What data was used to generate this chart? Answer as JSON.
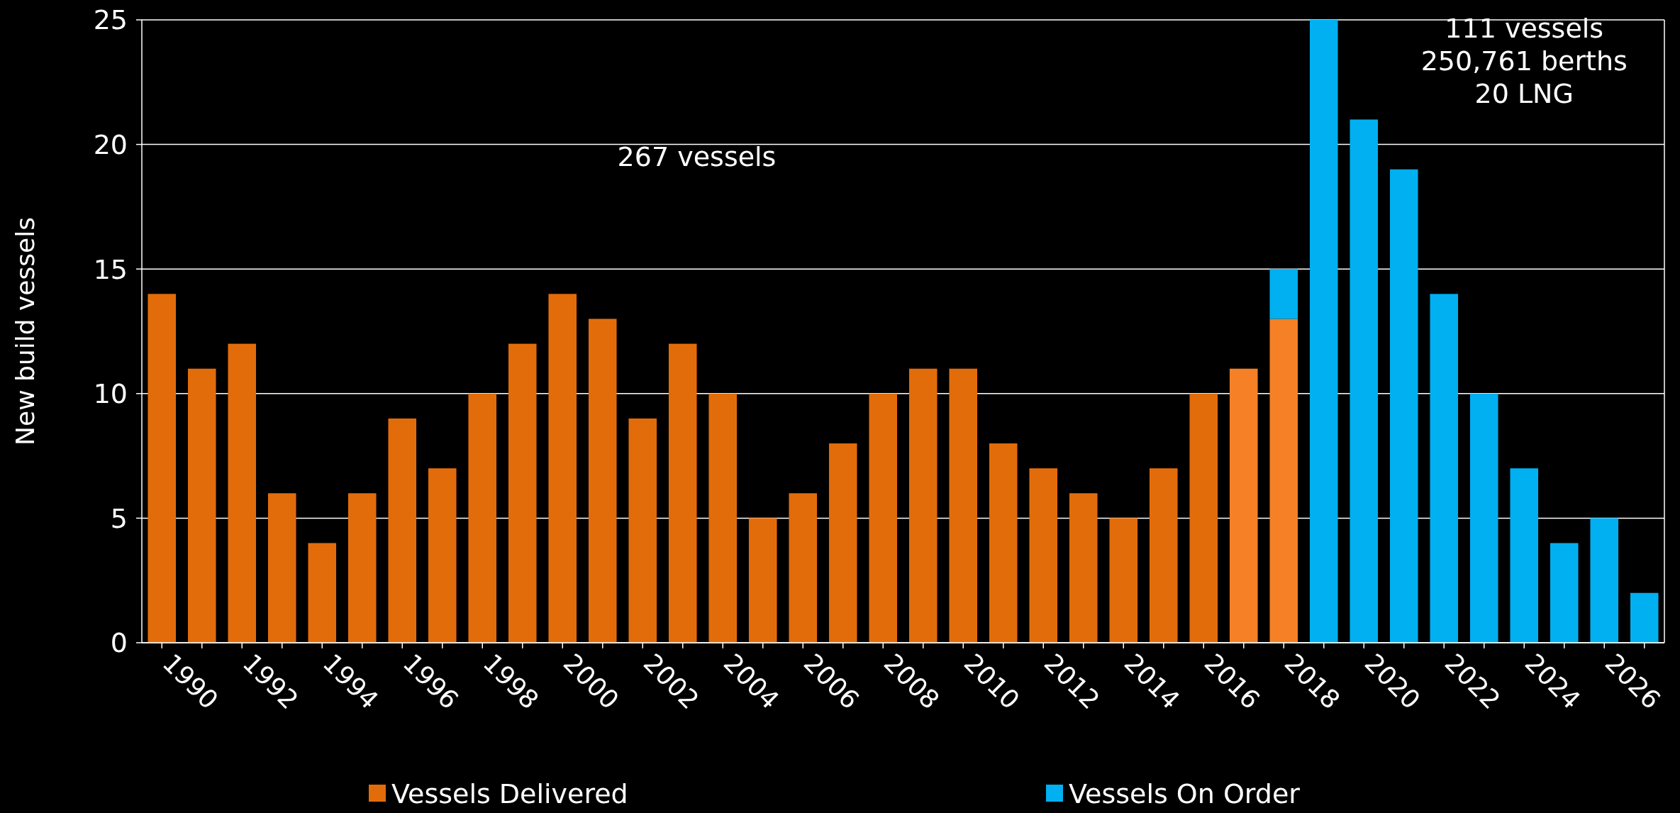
{
  "chart_data": {
    "type": "bar",
    "stacked": true,
    "ylabel": "New build vessels",
    "categories": [
      "1990",
      null,
      "1992",
      null,
      "1994",
      null,
      "1996",
      null,
      "1998",
      null,
      "2000",
      null,
      "2002",
      null,
      "2004",
      null,
      "2006",
      null,
      "2008",
      null,
      "2010",
      null,
      "2012",
      null,
      "2014",
      null,
      "2016",
      null,
      "2018",
      null,
      "2020",
      null,
      "2022",
      null,
      "2024",
      null,
      "2026",
      null
    ],
    "series": [
      {
        "name": "Vessels Delivered",
        "color": "#e36c0a",
        "colors": [
          "#e36c0a",
          "#e36c0a",
          "#e36c0a",
          "#e36c0a",
          "#e36c0a",
          "#e36c0a",
          "#e36c0a",
          "#e36c0a",
          "#e36c0a",
          "#e36c0a",
          "#e36c0a",
          "#e36c0a",
          "#e36c0a",
          "#e36c0a",
          "#e36c0a",
          "#e36c0a",
          "#e36c0a",
          "#e36c0a",
          "#e36c0a",
          "#e36c0a",
          "#e36c0a",
          "#e36c0a",
          "#e36c0a",
          "#e36c0a",
          "#e36c0a",
          "#e36c0a",
          "#e36c0a",
          "#f58025",
          "#f58025",
          null,
          null,
          null,
          null,
          null,
          null,
          null,
          null,
          null
        ],
        "values": [
          14,
          11,
          12,
          6,
          4,
          6,
          9,
          7,
          10,
          12,
          14,
          13,
          9,
          12,
          10,
          5,
          6,
          8,
          10,
          11,
          11,
          8,
          7,
          6,
          5,
          7,
          10,
          11,
          13,
          null,
          null,
          null,
          null,
          null,
          null,
          null,
          null,
          null
        ]
      },
      {
        "name": "Vessels On Order",
        "color": "#00b0f0",
        "values": [
          null,
          null,
          null,
          null,
          null,
          null,
          null,
          null,
          null,
          null,
          null,
          null,
          null,
          null,
          null,
          null,
          null,
          null,
          null,
          null,
          null,
          null,
          null,
          null,
          null,
          null,
          null,
          null,
          2,
          25,
          21,
          19,
          14,
          10,
          7,
          4,
          5,
          2
        ]
      }
    ],
    "ylim": [
      0,
      25
    ],
    "yticks": [
      0,
      5,
      10,
      15,
      20,
      25
    ],
    "grid": "y",
    "legend": "bottom",
    "annotations": [
      "267 vessels",
      "111 vessels\n250,761 berths\n20 LNG"
    ]
  }
}
